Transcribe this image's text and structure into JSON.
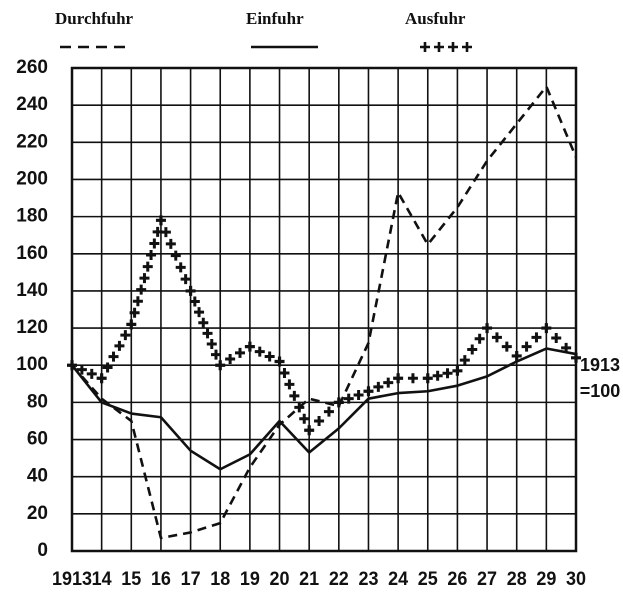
{
  "chart_data": {
    "type": "line",
    "categories": [
      "1913",
      "14",
      "15",
      "16",
      "17",
      "18",
      "19",
      "20",
      "21",
      "22",
      "23",
      "24",
      "25",
      "26",
      "27",
      "28",
      "29",
      "30"
    ],
    "series": [
      {
        "name": "Durchfuhr",
        "style": "dashed",
        "color": "#111111",
        "values": [
          100,
          82,
          70,
          7,
          10,
          15,
          45,
          68,
          82,
          78,
          112,
          193,
          165,
          185,
          210,
          230,
          250,
          212
        ]
      },
      {
        "name": "Einfuhr",
        "style": "solid",
        "color": "#111111",
        "values": [
          100,
          80,
          74,
          72,
          54,
          44,
          52,
          70,
          53,
          66,
          82,
          85,
          86,
          89,
          94,
          102,
          109,
          106
        ]
      },
      {
        "name": "Ausfuhr",
        "style": "crosses",
        "color": "#111111",
        "values": [
          100,
          93,
          122,
          178,
          140,
          100,
          110,
          102,
          65,
          80,
          86,
          93,
          93,
          97,
          120,
          105,
          120,
          104
        ]
      }
    ],
    "annotation": [
      "1913",
      "=100"
    ],
    "ylim": [
      0,
      260
    ],
    "yticks": [
      0,
      20,
      40,
      60,
      80,
      100,
      120,
      140,
      160,
      180,
      200,
      220,
      240,
      260
    ],
    "grid": true
  }
}
